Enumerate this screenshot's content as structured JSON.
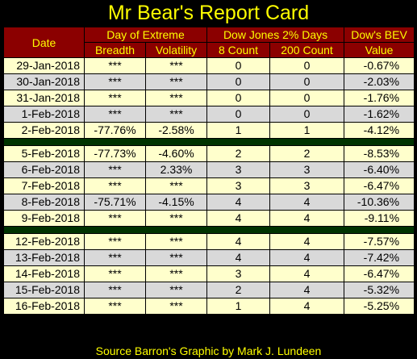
{
  "title": "Mr Bear's Report Card",
  "header": {
    "date": "Date",
    "day_of_extreme": "Day of Extreme",
    "dow_2pct": "Dow Jones 2% Days",
    "dow_bev": "Dow's BEV",
    "breadth": "Breadth",
    "volatility": "Volatility",
    "count8": "8 Count",
    "count200": "200 Count",
    "value": "Value"
  },
  "rows": [
    {
      "date": "29-Jan-2018",
      "breadth": "***",
      "volatility": "***",
      "c8": "0",
      "c200": "0",
      "bev": "-0.67%"
    },
    {
      "date": "30-Jan-2018",
      "breadth": "***",
      "volatility": "***",
      "c8": "0",
      "c200": "0",
      "bev": "-2.03%"
    },
    {
      "date": "31-Jan-2018",
      "breadth": "***",
      "volatility": "***",
      "c8": "0",
      "c200": "0",
      "bev": "-1.76%"
    },
    {
      "date": "1-Feb-2018",
      "breadth": "***",
      "volatility": "***",
      "c8": "0",
      "c200": "0",
      "bev": "-1.62%"
    },
    {
      "date": "2-Feb-2018",
      "breadth": "-77.76%",
      "volatility": "-2.58%",
      "c8": "1",
      "c200": "1",
      "bev": "-4.12%"
    },
    {
      "date": "5-Feb-2018",
      "breadth": "-77.73%",
      "volatility": "-4.60%",
      "c8": "2",
      "c200": "2",
      "bev": "-8.53%"
    },
    {
      "date": "6-Feb-2018",
      "breadth": "***",
      "volatility": "2.33%",
      "c8": "3",
      "c200": "3",
      "bev": "-6.40%"
    },
    {
      "date": "7-Feb-2018",
      "breadth": "***",
      "volatility": "***",
      "c8": "3",
      "c200": "3",
      "bev": "-6.47%"
    },
    {
      "date": "8-Feb-2018",
      "breadth": "-75.71%",
      "volatility": "-4.15%",
      "c8": "4",
      "c200": "4",
      "bev": "-10.36%"
    },
    {
      "date": "9-Feb-2018",
      "breadth": "***",
      "volatility": "***",
      "c8": "4",
      "c200": "4",
      "bev": "-9.11%"
    },
    {
      "date": "12-Feb-2018",
      "breadth": "***",
      "volatility": "***",
      "c8": "4",
      "c200": "4",
      "bev": "-7.57%"
    },
    {
      "date": "13-Feb-2018",
      "breadth": "***",
      "volatility": "***",
      "c8": "4",
      "c200": "4",
      "bev": "-7.42%"
    },
    {
      "date": "14-Feb-2018",
      "breadth": "***",
      "volatility": "***",
      "c8": "3",
      "c200": "4",
      "bev": "-6.47%"
    },
    {
      "date": "15-Feb-2018",
      "breadth": "***",
      "volatility": "***",
      "c8": "2",
      "c200": "4",
      "bev": "-5.32%"
    },
    {
      "date": "16-Feb-2018",
      "breadth": "***",
      "volatility": "***",
      "c8": "1",
      "c200": "4",
      "bev": "-5.25%"
    }
  ],
  "footer": "Source Barron's  Graphic by Mark J. Lundeen",
  "colors": {
    "background": "#000000",
    "title_text": "#ffff00",
    "header_bg": "#8b0000",
    "row_light": "#ffffcc",
    "row_gray": "#d9d9d9",
    "separator": "#003300"
  }
}
